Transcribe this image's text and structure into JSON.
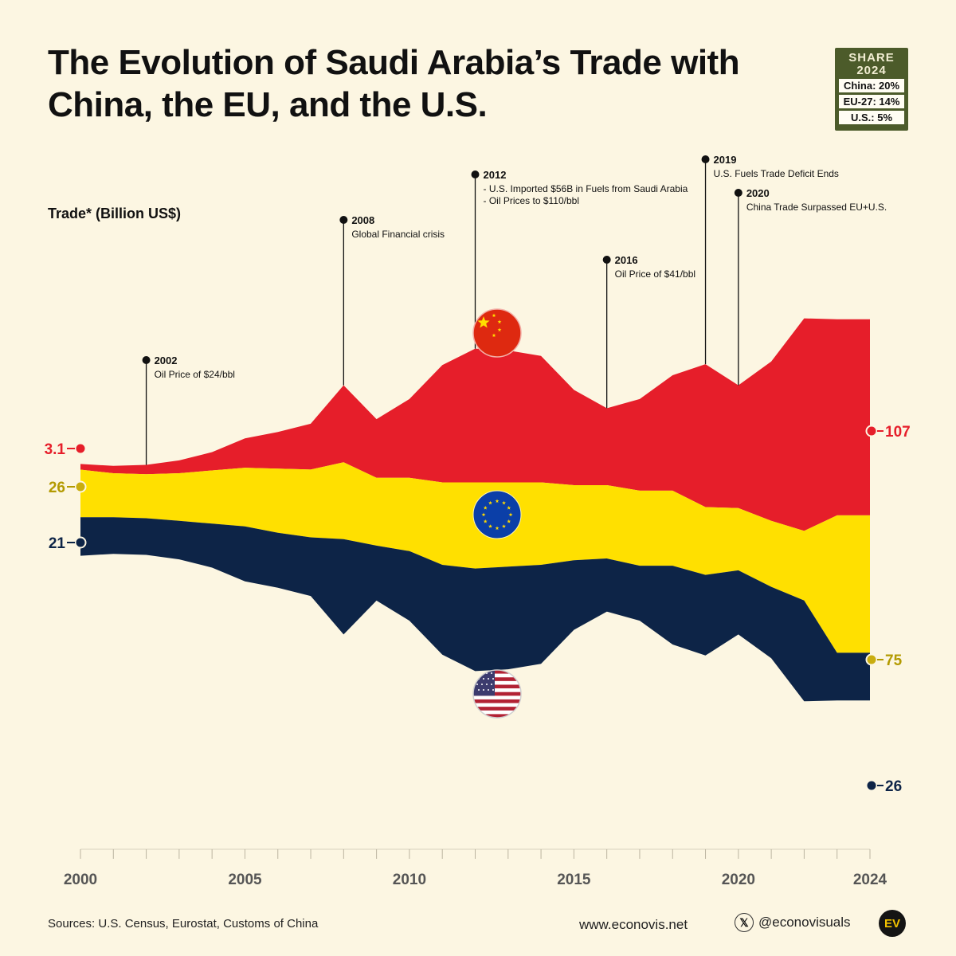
{
  "title": "The Evolution of Saudi Arabia’s Trade with China, the EU, and the U.S.",
  "share": {
    "heading": "SHARE",
    "year": "2024",
    "rows": [
      "China: 20%",
      "EU-27: 14%",
      "U.S.: 5%"
    ]
  },
  "chart_data": {
    "type": "area",
    "layout": "streamgraph",
    "title": "The Evolution of Saudi Arabia’s Trade with China, the EU, and the U.S.",
    "ylabel": "Trade* (Billion US$)",
    "xlabel": "",
    "x": [
      2000,
      2001,
      2002,
      2003,
      2004,
      2005,
      2006,
      2007,
      2008,
      2009,
      2010,
      2011,
      2012,
      2013,
      2014,
      2015,
      2016,
      2017,
      2018,
      2019,
      2020,
      2021,
      2022,
      2023,
      2024
    ],
    "xticks": [
      2000,
      2005,
      2010,
      2015,
      2020,
      2024
    ],
    "series": [
      {
        "name": "China",
        "color": "#e61e2a",
        "values": [
          3.1,
          4,
          5.1,
          7,
          10,
          16,
          20,
          25,
          42,
          32,
          43,
          64,
          73,
          72,
          69,
          52,
          42,
          50,
          63,
          78,
          67,
          87,
          116,
          107,
          107
        ]
      },
      {
        "name": "EU-27",
        "color": "#ffe000",
        "values": [
          26,
          24,
          24,
          26,
          29,
          32,
          35,
          37,
          42,
          37,
          40,
          45,
          47,
          46,
          45,
          41,
          40,
          41,
          41,
          37,
          34,
          36,
          38,
          75,
          75
        ]
      },
      {
        "name": "U.S.",
        "color": "#0d2447",
        "values": [
          21,
          20,
          20,
          21,
          24,
          30,
          30,
          32,
          52,
          30,
          38,
          49,
          56,
          56,
          54,
          38,
          29,
          30,
          43,
          44,
          35,
          39,
          55,
          26,
          26
        ]
      }
    ],
    "start_labels": {
      "China": "3.1",
      "EU-27": "26",
      "U.S.": "21"
    },
    "end_labels": {
      "China": "107",
      "EU-27": "75",
      "U.S.": "26"
    },
    "annotations": [
      {
        "year": "2002",
        "lines": [
          "Oil Price of $24/bbl"
        ]
      },
      {
        "year": "2008",
        "lines": [
          "Global Financial crisis"
        ]
      },
      {
        "year": "2012",
        "lines": [
          "- U.S. Imported $56B in Fuels from Saudi Arabia",
          "- Oil Prices to $110/bbl"
        ]
      },
      {
        "year": "2016",
        "lines": [
          "Oil Price of $41/bbl"
        ]
      },
      {
        "year": "2019",
        "lines": [
          "U.S. Fuels Trade Deficit Ends"
        ]
      },
      {
        "year": "2020",
        "lines": [
          "China Trade Surpassed EU+U.S."
        ]
      }
    ]
  },
  "footer": {
    "sources": "Sources: U.S. Census, Eurostat, Customs of China",
    "website": "www.econovis.net",
    "x_glyph": "𝕏",
    "handle": "@econovisuals",
    "logo": "EV"
  },
  "colors": {
    "china": "#e61e2a",
    "eu": "#ffe000",
    "us": "#0d2447",
    "background": "#fcf6e2"
  }
}
